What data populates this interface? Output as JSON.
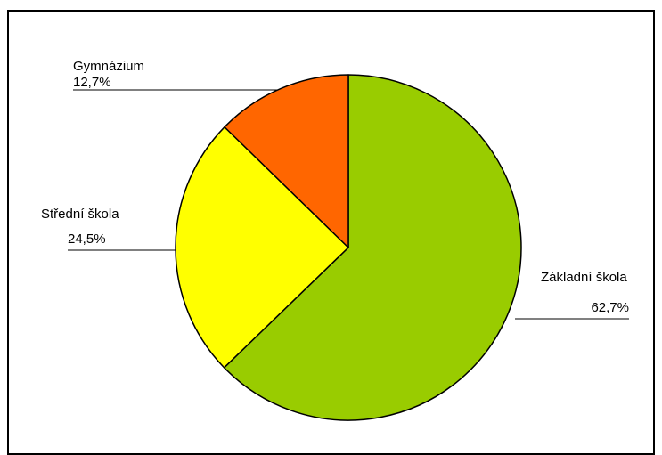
{
  "chart_data": {
    "type": "pie",
    "title": "",
    "slices": [
      {
        "label": "Základní škola",
        "value": 62.7,
        "display": "62,7%",
        "color": "#99CC00"
      },
      {
        "label": "Střední škola",
        "value": 24.5,
        "display": "24,5%",
        "color": "#FFFF00"
      },
      {
        "label": "Gymnázium",
        "value": 12.7,
        "display": "12,7%",
        "color": "#FF6600"
      }
    ],
    "start_angle": "12 o'clock, clockwise",
    "legend": "none (labels beside slices)"
  }
}
